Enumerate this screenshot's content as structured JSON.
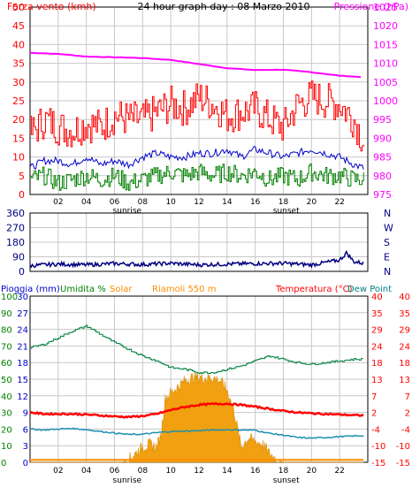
{
  "chart_data": [
    {
      "type": "line",
      "title": "24 hour graph day : 08 Marzo 2010",
      "left_axis_label": "Forza vento (kmh)",
      "right_axis_label": "Pressione (hPa)",
      "x_ticks": [
        "02",
        "04",
        "06",
        "08",
        "10",
        "12",
        "14",
        "16",
        "18",
        "20",
        "22"
      ],
      "x_annotations": {
        "sunrise": "sunrise",
        "sunset": "sunset"
      },
      "sunrise_hour": 6.9,
      "sunset_hour": 18.2,
      "ylim_left": [
        0,
        50
      ],
      "y_ticks_left": [
        "0",
        "5",
        "10",
        "15",
        "20",
        "25",
        "30",
        "35",
        "40",
        "45",
        "50"
      ],
      "ylim_right": [
        975,
        1025
      ],
      "y_ticks_right": [
        "975",
        "980",
        "985",
        "990",
        "995",
        "1000",
        "1005",
        "1010",
        "1015",
        "1020",
        "1025"
      ],
      "series": [
        {
          "name": "pressure",
          "axis": "right",
          "color": "#ff00ff",
          "x": [
            0,
            2,
            4,
            6,
            8,
            10,
            12,
            14,
            16,
            18,
            20,
            22,
            23.7
          ],
          "values": [
            1012.8,
            1012.5,
            1011.8,
            1011.6,
            1011.4,
            1010.9,
            1009.8,
            1008.7,
            1008.2,
            1008.3,
            1007.6,
            1006.7,
            1006.3
          ]
        },
        {
          "name": "gust",
          "axis": "left",
          "color": "#ff0000",
          "x": [
            0,
            1,
            2,
            3,
            4,
            5,
            6,
            7,
            8,
            9,
            10,
            11,
            12,
            13,
            14,
            15,
            16,
            17,
            18,
            19,
            20,
            21,
            22,
            23,
            23.7
          ],
          "values": [
            16,
            20,
            18,
            17,
            19,
            18,
            21,
            20,
            20,
            22,
            24,
            23,
            26,
            24,
            21,
            22,
            23,
            20,
            18,
            24,
            26,
            25,
            24,
            20,
            14
          ]
        },
        {
          "name": "wind_avg",
          "axis": "left",
          "color": "#0000cc",
          "x": [
            0,
            1,
            2,
            3,
            4,
            5,
            6,
            7,
            8,
            9,
            10,
            11,
            12,
            13,
            14,
            15,
            16,
            17,
            18,
            19,
            20,
            21,
            22,
            23,
            23.7
          ],
          "values": [
            7,
            9,
            9,
            8,
            10,
            8,
            9,
            8,
            10,
            11,
            10,
            10,
            11,
            11,
            12,
            10,
            12,
            11,
            10,
            11,
            12,
            11,
            10,
            8,
            7
          ]
        },
        {
          "name": "wind_min",
          "axis": "left",
          "color": "#008000",
          "x": [
            0,
            1,
            2,
            3,
            4,
            5,
            6,
            7,
            8,
            9,
            10,
            11,
            12,
            13,
            14,
            15,
            16,
            17,
            18,
            19,
            20,
            21,
            22,
            23,
            23.7
          ],
          "values": [
            4,
            5,
            3,
            4,
            5,
            4,
            5,
            3,
            4,
            5,
            6,
            5,
            6,
            5,
            6,
            5,
            6,
            4,
            5,
            4,
            6,
            5,
            5,
            4,
            4
          ]
        }
      ]
    },
    {
      "type": "line",
      "title": "",
      "y_ticks_left": [
        "0",
        "90",
        "180",
        "270",
        "360"
      ],
      "ylim_left": [
        0,
        360
      ],
      "y_labels_right": [
        "N",
        "W",
        "S",
        "E",
        "N"
      ],
      "x_ticks": [
        "02",
        "04",
        "06",
        "08",
        "10",
        "12",
        "14",
        "16",
        "18",
        "20",
        "22"
      ],
      "series": [
        {
          "name": "wind_direction",
          "color": "#000080",
          "x": [
            0,
            2,
            4,
            6,
            8,
            10,
            12,
            14,
            16,
            18,
            20,
            21,
            22,
            22.5,
            23,
            23.7
          ],
          "values": [
            35,
            45,
            40,
            48,
            42,
            50,
            40,
            45,
            48,
            50,
            40,
            55,
            70,
            115,
            60,
            50
          ]
        }
      ]
    },
    {
      "type": "line",
      "title": "",
      "legend": {
        "rain": "Pioggia (mm)",
        "humidity": "Umidita %",
        "solar": "Solar",
        "cloud": "Riamoli 550 m",
        "temperature": "Temperatura (°C)",
        "dewpoint": "Dew Point"
      },
      "legend_colors": {
        "rain": "#0000cc",
        "humidity": "#008000",
        "solar": "#ff8c00",
        "cloud": "#ff8c00",
        "temperature": "#ff0000",
        "dewpoint": "#008080"
      },
      "x_ticks": [
        "02",
        "04",
        "06",
        "08",
        "10",
        "12",
        "14",
        "16",
        "18",
        "20",
        "22"
      ],
      "x_annotations": {
        "sunrise": "sunrise",
        "sunset": "sunset"
      },
      "y_ticks_left_outer": [
        "0",
        "10",
        "20",
        "30",
        "40",
        "50",
        "60",
        "70",
        "80",
        "90",
        "100"
      ],
      "y_ticks_left_inner": [
        "0",
        "3",
        "6",
        "9",
        "12",
        "15",
        "18",
        "21",
        "24",
        "27",
        "30"
      ],
      "ylim_left_outer": [
        0,
        100
      ],
      "y_ticks_right_inner": [
        "-15",
        "-10",
        "-4",
        "2",
        "7",
        "13",
        "18",
        "24",
        "29",
        "35",
        "40"
      ],
      "y_ticks_right_outer": [
        "-15",
        "-10",
        "-4",
        "2",
        "7",
        "13",
        "18",
        "24",
        "29",
        "35",
        "40"
      ],
      "ylim_right": [
        -15,
        40
      ],
      "series": [
        {
          "name": "humidity",
          "axis": "left_outer",
          "color": "#008040",
          "x": [
            0,
            1,
            2,
            3,
            4,
            5,
            6,
            7,
            8,
            9,
            10,
            11,
            12,
            13,
            14,
            15,
            16,
            17,
            18,
            19,
            20,
            21,
            22,
            23,
            23.7
          ],
          "values": [
            69,
            71,
            75,
            79,
            82,
            77,
            72,
            68,
            64,
            61,
            57,
            56,
            54,
            54,
            56,
            58,
            61,
            64,
            62,
            60,
            59,
            60,
            61,
            62,
            62
          ]
        },
        {
          "name": "temperature",
          "axis": "right",
          "color": "#ff0000",
          "x": [
            0,
            1,
            2,
            3,
            4,
            5,
            6,
            7,
            8,
            9,
            10,
            11,
            12,
            13,
            14,
            15,
            16,
            17,
            18,
            19,
            20,
            21,
            22,
            23,
            23.7
          ],
          "values": [
            1.5,
            1.0,
            1.0,
            1.0,
            0.8,
            0.5,
            0.2,
            0.0,
            0.3,
            1.0,
            2.3,
            3.3,
            4.0,
            4.3,
            4.4,
            4.0,
            3.4,
            2.7,
            2.0,
            1.5,
            1.2,
            1.0,
            0.8,
            0.6,
            0.5
          ]
        },
        {
          "name": "dewpoint",
          "axis": "right",
          "color": "#1e90b0",
          "x": [
            0,
            1,
            2,
            3,
            4,
            5,
            6,
            7,
            8,
            9,
            10,
            11,
            12,
            13,
            14,
            15,
            16,
            17,
            18,
            19,
            20,
            21,
            22,
            23,
            23.7
          ],
          "values": [
            -4.0,
            -4.3,
            -4.0,
            -3.8,
            -4.2,
            -4.8,
            -5.3,
            -5.8,
            -5.7,
            -5.2,
            -4.8,
            -4.7,
            -4.5,
            -4.3,
            -4.2,
            -4.3,
            -4.4,
            -5.4,
            -6.0,
            -6.8,
            -7.0,
            -6.8,
            -6.5,
            -6.3,
            -6.2
          ]
        },
        {
          "name": "solar",
          "axis": "right",
          "color": "#f0a010",
          "x": [
            0,
            6.5,
            7,
            7.5,
            8,
            8.5,
            9,
            9.3,
            9.6,
            10,
            10.5,
            11,
            11.5,
            12,
            12.5,
            13,
            13.5,
            14,
            14.5,
            15,
            15.5,
            16,
            16.5,
            17,
            17.5,
            18,
            23.7
          ],
          "values": [
            -15,
            -15,
            -14,
            -12,
            -10,
            -9,
            -10,
            -6,
            6,
            8,
            10,
            12,
            13,
            13,
            13,
            13,
            12,
            9,
            2,
            -10,
            -7,
            -8,
            -9,
            -12,
            -14,
            -15,
            -15
          ]
        },
        {
          "name": "rain_baseline",
          "axis": "right",
          "color": "#ff8c00",
          "x": [
            0,
            23.7
          ],
          "values": [
            -14.2,
            -14.2
          ]
        }
      ]
    }
  ]
}
